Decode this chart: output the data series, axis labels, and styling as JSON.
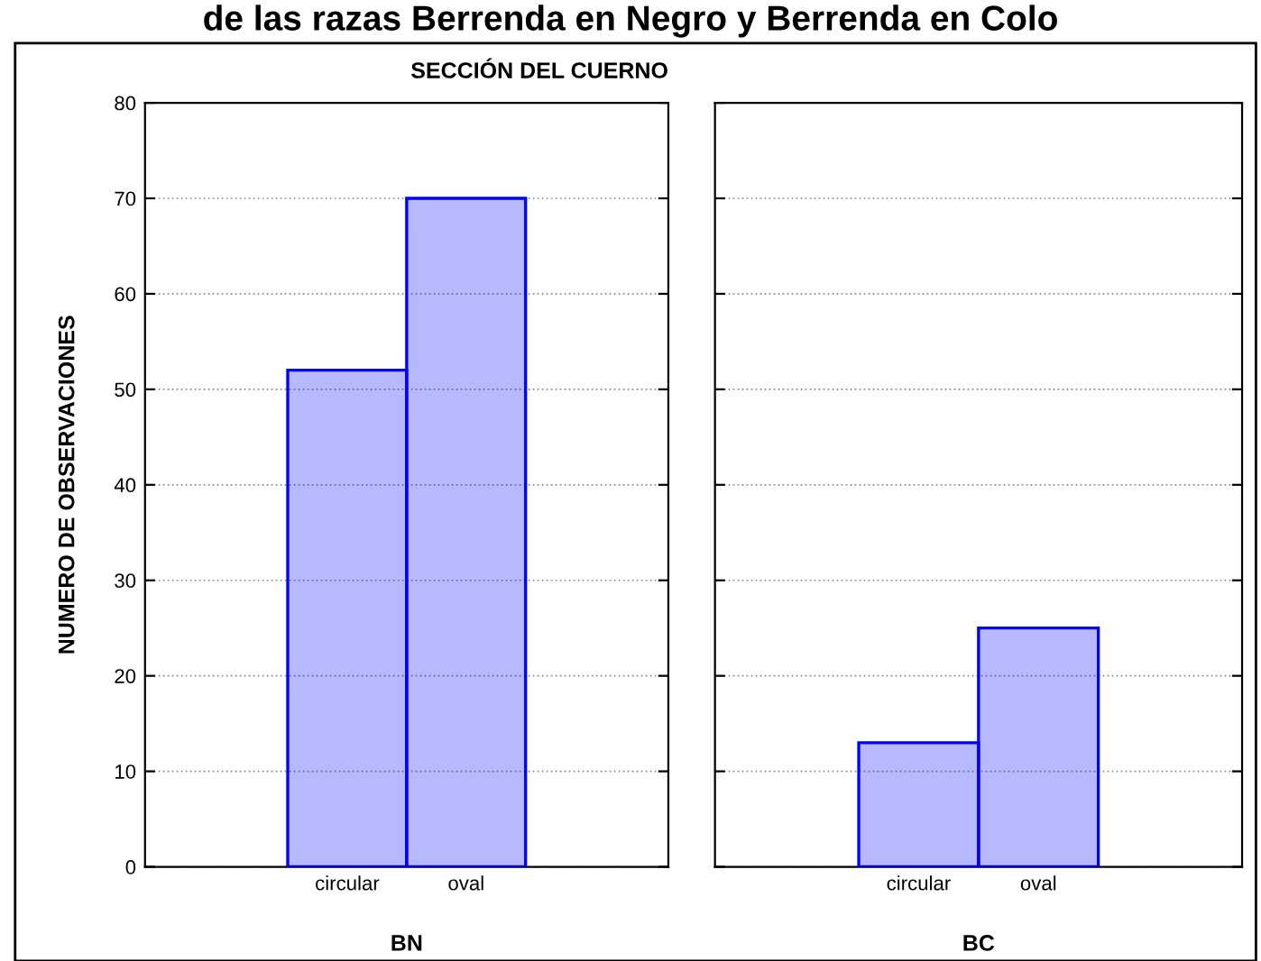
{
  "chart_data": [
    {
      "type": "bar",
      "title": "de las razas Berrenda en Negro y Berrenda en Colo",
      "subtitle": "SECCIÓN DEL CUERNO",
      "ylabel": "NUMERO DE OBSERVACIONES",
      "xlabel": "BN",
      "categories": [
        "circular",
        "oval"
      ],
      "values": [
        52,
        70
      ],
      "color": "#0000ff",
      "ylim": [
        0,
        80
      ],
      "yticks": [
        0,
        10,
        20,
        30,
        40,
        50,
        60,
        70,
        80
      ],
      "grid": "y"
    },
    {
      "type": "bar",
      "xlabel": "BC",
      "categories": [
        "circular",
        "oval"
      ],
      "values": [
        13,
        25
      ],
      "color": "#0000ff",
      "ylim": [
        0,
        80
      ],
      "yticks": [
        0,
        10,
        20,
        30,
        40,
        50,
        60,
        70,
        80
      ],
      "grid": "y",
      "tick_labels": "x"
    }
  ]
}
